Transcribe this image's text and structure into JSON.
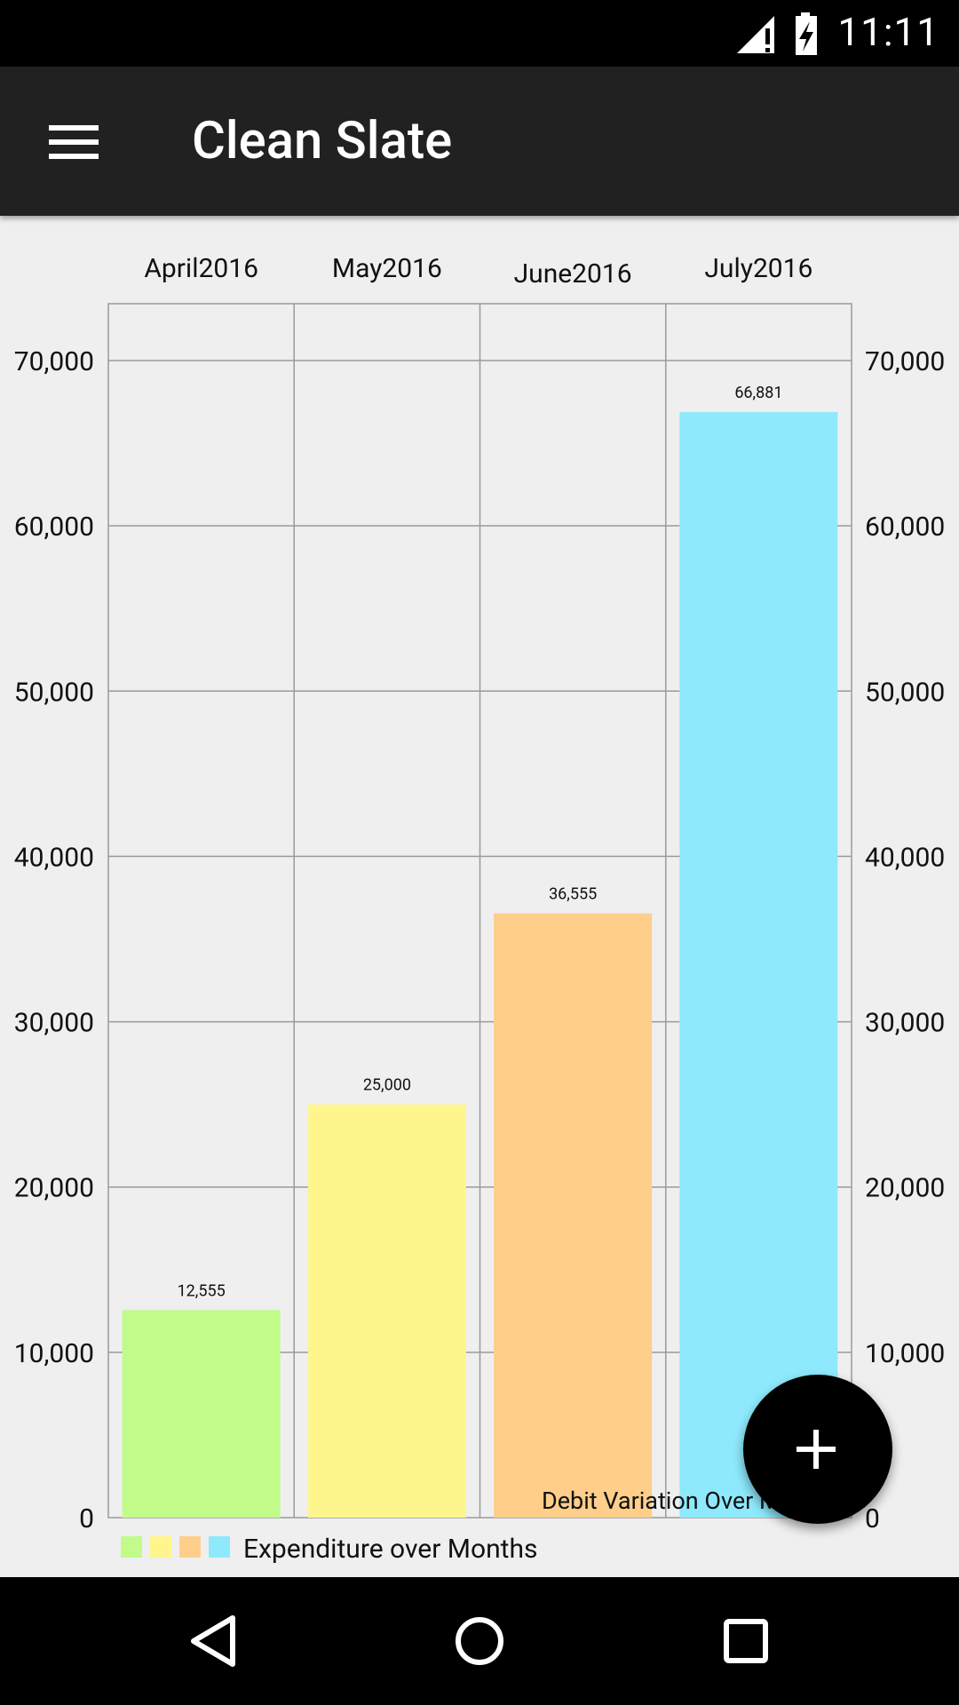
{
  "status_bar": {
    "time": "11:11",
    "icons": [
      "signal-icon",
      "battery-charging-icon"
    ]
  },
  "app_bar": {
    "title": "Clean Slate",
    "menu_icon": "menu-icon"
  },
  "chart_data": {
    "type": "bar",
    "categories": [
      "April2016",
      "May2016",
      "June2016",
      "July2016"
    ],
    "values": [
      12555,
      25000,
      36555,
      66881
    ],
    "value_labels": [
      "12,555",
      "25,000",
      "36,555",
      "66,881"
    ],
    "colors": [
      "#c2fb8a",
      "#fef68c",
      "#fece8a",
      "#8ee9fc"
    ],
    "ylim": [
      0,
      70000
    ],
    "y_ticks": [
      "0",
      "10,000",
      "20,000",
      "30,000",
      "40,000",
      "50,000",
      "60,000",
      "70,000"
    ],
    "description": "Debit Variation Over Months",
    "legend": {
      "label": "Expenditure over Months",
      "position": "bottom-left"
    },
    "grid": true,
    "y_axis_both_sides": true
  },
  "fab": {
    "icon": "plus-icon"
  },
  "nav_bar": {
    "buttons": [
      "back-icon",
      "home-icon",
      "recents-icon"
    ]
  }
}
